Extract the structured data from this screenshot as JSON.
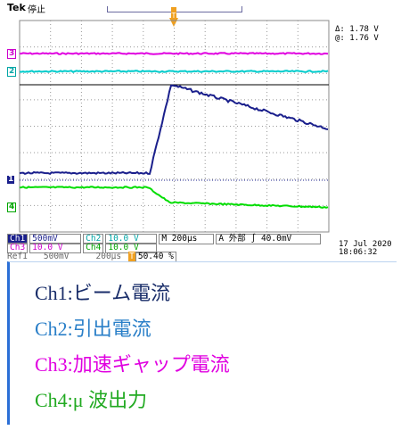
{
  "scope": {
    "brand": "Tek",
    "status": "停止",
    "trigger_marker": "T",
    "cursor": [
      {
        "label": "Δ:",
        "value": "1.78 V"
      },
      {
        "label": "@:",
        "value": "1.76 V"
      }
    ],
    "channel_markers": [
      {
        "id": "3",
        "color": "#cc00cc"
      },
      {
        "id": "2",
        "color": "#00a6a6"
      },
      {
        "id": "1",
        "color": "#1a1f8c"
      },
      {
        "id": "4",
        "color": "#00a600"
      }
    ],
    "readout": {
      "ch1": "Ch1",
      "ch1_scale": "500mV",
      "ch2": "Ch2",
      "ch2_scale": "10.0 V",
      "ch3": "Ch3",
      "ch3_scale": "10.0 V",
      "ch4": "Ch4",
      "ch4_scale": "10.0 V",
      "timebase": "M 200µs",
      "trigger": "A 外部 ∫ 40.0mV",
      "ref": "Ref1",
      "ref_scale": "500mV",
      "ref_time": "200µs",
      "position": "50.40 %"
    },
    "date": "17 Jul  2020",
    "time": "18:06:32",
    "colors": {
      "ch1": "#1a1f8c",
      "ch2": "#00cccc",
      "ch3": "#e000e0",
      "ch4": "#00dd00",
      "grid": "#888888"
    }
  },
  "legend": [
    {
      "text": "Ch1:ビーム電流",
      "color": "#1a2e6a"
    },
    {
      "text": "Ch2:引出電流",
      "color": "#2a7fc8"
    },
    {
      "text": "Ch3:加速ギャップ電流",
      "color": "#e000e0"
    },
    {
      "text": "Ch4:μ 波出力",
      "color": "#22aa22"
    }
  ]
}
